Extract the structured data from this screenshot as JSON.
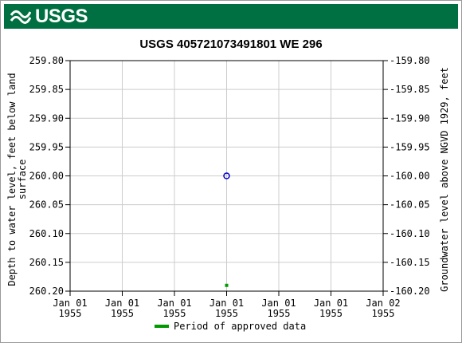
{
  "header": {
    "logo_text": "USGS",
    "brand_color": "#006f41"
  },
  "chart_data": {
    "type": "scatter",
    "title": "USGS 405721073491801 WE 296",
    "ylabel_left": "Depth to water level, feet below land surface",
    "ylabel_left_lines": [
      "Depth to water level, feet below land",
      "surface"
    ],
    "ylabel_right": "Groundwater level above NGVD 1929, feet",
    "y_left": {
      "min": 259.8,
      "max": 260.2,
      "inverted": true,
      "ticks": [
        259.8,
        259.85,
        259.9,
        259.95,
        260.0,
        260.05,
        260.1,
        260.15,
        260.2
      ],
      "tick_labels": [
        "259.80",
        "259.85",
        "259.90",
        "259.95",
        "260.00",
        "260.05",
        "260.10",
        "260.15",
        "260.20"
      ]
    },
    "y_right": {
      "min": -159.8,
      "max": -160.2,
      "tick_labels": [
        "-159.80",
        "-159.85",
        "-159.90",
        "-159.95",
        "-160.00",
        "-160.05",
        "-160.10",
        "-160.15",
        "-160.20"
      ]
    },
    "x_axis": {
      "ticks": [
        0,
        1,
        2,
        3,
        4,
        5,
        6
      ],
      "tick_labels": [
        [
          "Jan 01",
          "1955"
        ],
        [
          "Jan 01",
          "1955"
        ],
        [
          "Jan 01",
          "1955"
        ],
        [
          "Jan 01",
          "1955"
        ],
        [
          "Jan 01",
          "1955"
        ],
        [
          "Jan 01",
          "1955"
        ],
        [
          "Jan 02",
          "1955"
        ]
      ]
    },
    "grid": true,
    "points": [
      {
        "x": 3,
        "y": 260.0,
        "marker": "open-circle",
        "color": "#0000cc"
      }
    ],
    "approved_period": [
      {
        "x": 3,
        "y": 260.19,
        "color": "#009900"
      }
    ],
    "legend": {
      "position": "bottom-center",
      "label": "Period of approved data",
      "color": "#009900"
    }
  }
}
